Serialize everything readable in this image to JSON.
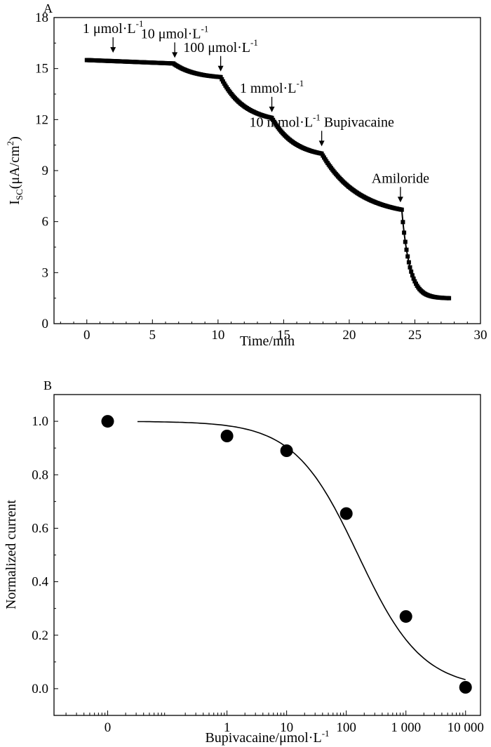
{
  "chart_data": [
    {
      "panel": "A",
      "type": "line",
      "marker": "square",
      "xlabel": "Time/min",
      "ylabel": {
        "main": "I",
        "sub": "SC",
        "unit": "(μA/cm",
        "sup": "2",
        "close": ")"
      },
      "xlim": [
        -2.5,
        30
      ],
      "ylim": [
        0,
        18
      ],
      "xticks": [
        0,
        5,
        10,
        15,
        20,
        25,
        30
      ],
      "yticks": [
        0,
        3,
        6,
        9,
        12,
        15,
        18
      ],
      "annotations": [
        {
          "base": "1 μmol·L",
          "sup": "-1",
          "tail": "",
          "arrow_x": 2.0,
          "arrow_y": 15.6
        },
        {
          "base": "10 μmol·L",
          "sup": "-1",
          "tail": "",
          "arrow_x": 6.7,
          "arrow_y": 15.3
        },
        {
          "base": "100 μmol·L",
          "sup": "-1",
          "tail": "",
          "arrow_x": 10.2,
          "arrow_y": 14.5
        },
        {
          "base": "1 mmol·L",
          "sup": "-1",
          "tail": "",
          "arrow_x": 14.1,
          "arrow_y": 12.1
        },
        {
          "base": "10 mmol·L",
          "sup": "-1",
          "tail": " Bupivacaine",
          "arrow_x": 17.9,
          "arrow_y": 10.1
        },
        {
          "base": "Amiloride",
          "sup": "",
          "tail": "",
          "arrow_x": 23.9,
          "arrow_y": 6.8
        }
      ],
      "segments": [
        {
          "t0": 0.0,
          "t1": 6.6,
          "v0": 15.5,
          "v1": 15.3,
          "shape": "linear"
        },
        {
          "t0": 6.6,
          "t1": 10.2,
          "v0": 15.3,
          "v1": 14.5,
          "shape": "decay"
        },
        {
          "t0": 10.2,
          "t1": 14.1,
          "v0": 14.5,
          "v1": 12.1,
          "shape": "decay"
        },
        {
          "t0": 14.1,
          "t1": 17.9,
          "v0": 12.1,
          "v1": 10.0,
          "shape": "decay"
        },
        {
          "t0": 17.9,
          "t1": 24.0,
          "v0": 10.0,
          "v1": 6.7,
          "shape": "decay"
        },
        {
          "t0": 24.0,
          "t1": 27.6,
          "v0": 6.7,
          "v1": 1.5,
          "shape": "fastdecay"
        }
      ]
    },
    {
      "panel": "B",
      "type": "scatter",
      "marker": "circle",
      "xlabel": {
        "base": "Bupivacaine/μmol·L",
        "sup": "-1"
      },
      "ylabel": "Normalized current",
      "xscale": "log",
      "xlim_log10": [
        -2.9,
        4.25
      ],
      "ylim": [
        -0.1,
        1.1
      ],
      "xticks": [
        {
          "pos_log10": -2,
          "label": "0"
        },
        {
          "pos_log10": 0,
          "label": "1"
        },
        {
          "pos_log10": 1,
          "label": "10"
        },
        {
          "pos_log10": 2,
          "label": "100"
        },
        {
          "pos_log10": 3,
          "label": "1 000"
        },
        {
          "pos_log10": 4,
          "label": "10 000"
        }
      ],
      "yticks": [
        "0.0",
        "0.2",
        "0.4",
        "0.6",
        "0.8",
        "1.0"
      ],
      "points": [
        {
          "x": 0,
          "x_log10": -2,
          "y": 1.0
        },
        {
          "x": 1,
          "x_log10": 0,
          "y": 0.945
        },
        {
          "x": 10,
          "x_log10": 1,
          "y": 0.89
        },
        {
          "x": 100,
          "x_log10": 2,
          "y": 0.655
        },
        {
          "x": 1000,
          "x_log10": 3,
          "y": 0.27
        },
        {
          "x": 10000,
          "x_log10": 4,
          "y": 0.005
        }
      ],
      "fit": {
        "model": "hill",
        "top": 1.0,
        "bottom": 0.0,
        "ic50": 158,
        "hill": 0.81,
        "x_from_log10": -1.5,
        "x_to_log10": 4.0
      }
    }
  ],
  "panel_labels": {
    "a": "A",
    "b": "B"
  }
}
